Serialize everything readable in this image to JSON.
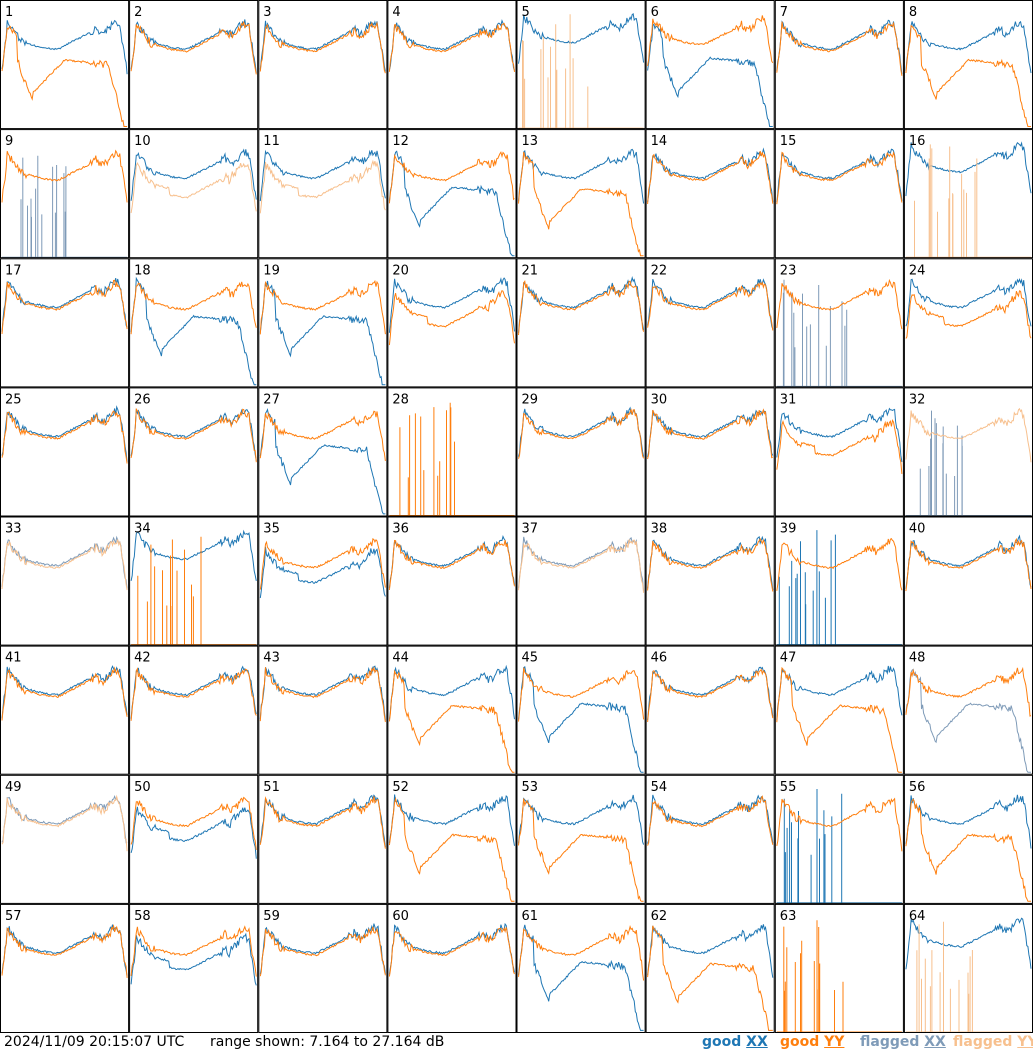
{
  "footer": {
    "timestamp": "2024/11/09 20:15:07 UTC",
    "range_text": "range shown: 7.164 to 27.164 dB"
  },
  "legend": [
    {
      "status": "good",
      "pol": "XX",
      "color": "#1f77b4"
    },
    {
      "status": "good",
      "pol": "YY",
      "color": "#ff7f0e"
    },
    {
      "status": "flagged",
      "pol": "XX",
      "color": "#7f9bb8"
    },
    {
      "status": "flagged",
      "pol": "YY",
      "color": "#f7c08e"
    }
  ],
  "chart_data": {
    "type": "line",
    "grid": "8x8 small-multiples of antenna spectra",
    "ylim": [
      7.164,
      27.164
    ],
    "units": "dB",
    "panels": [
      {
        "id": "1",
        "xx": "good",
        "yy": "good",
        "xx_shape": "normal",
        "yy_shape": "droop"
      },
      {
        "id": "2",
        "xx": "good",
        "yy": "good",
        "xx_shape": "normal",
        "yy_shape": "normal"
      },
      {
        "id": "3",
        "xx": "good",
        "yy": "good",
        "xx_shape": "normal",
        "yy_shape": "normal"
      },
      {
        "id": "4",
        "xx": "good",
        "yy": "good",
        "xx_shape": "normal",
        "yy_shape": "normal"
      },
      {
        "id": "5",
        "xx": "good",
        "yy": "flagged",
        "xx_shape": "high",
        "yy_shape": "spikes"
      },
      {
        "id": "6",
        "xx": "good",
        "yy": "good",
        "xx_shape": "droop",
        "yy_shape": "high"
      },
      {
        "id": "7",
        "xx": "good",
        "yy": "good",
        "xx_shape": "normal",
        "yy_shape": "normal"
      },
      {
        "id": "8",
        "xx": "good",
        "yy": "good",
        "xx_shape": "normal",
        "yy_shape": "droop"
      },
      {
        "id": "9",
        "xx": "flagged",
        "yy": "good",
        "xx_shape": "spikes",
        "yy_shape": "normal"
      },
      {
        "id": "10",
        "xx": "good",
        "yy": "flagged",
        "xx_shape": "normal",
        "yy_shape": "low"
      },
      {
        "id": "11",
        "xx": "good",
        "yy": "flagged",
        "xx_shape": "normal",
        "yy_shape": "low"
      },
      {
        "id": "12",
        "xx": "good",
        "yy": "good",
        "xx_shape": "droop",
        "yy_shape": "normal"
      },
      {
        "id": "13",
        "xx": "good",
        "yy": "good",
        "xx_shape": "normal",
        "yy_shape": "droop"
      },
      {
        "id": "14",
        "xx": "good",
        "yy": "good",
        "xx_shape": "normal",
        "yy_shape": "normal"
      },
      {
        "id": "15",
        "xx": "good",
        "yy": "good",
        "xx_shape": "normal",
        "yy_shape": "normal"
      },
      {
        "id": "16",
        "xx": "good",
        "yy": "flagged",
        "xx_shape": "high",
        "yy_shape": "spikes"
      },
      {
        "id": "17",
        "xx": "good",
        "yy": "good",
        "xx_shape": "normal",
        "yy_shape": "normal"
      },
      {
        "id": "18",
        "xx": "good",
        "yy": "good",
        "xx_shape": "droop",
        "yy_shape": "normal"
      },
      {
        "id": "19",
        "xx": "good",
        "yy": "good",
        "xx_shape": "droop",
        "yy_shape": "normal"
      },
      {
        "id": "20",
        "xx": "good",
        "yy": "good",
        "xx_shape": "normal",
        "yy_shape": "low"
      },
      {
        "id": "21",
        "xx": "good",
        "yy": "good",
        "xx_shape": "normal",
        "yy_shape": "normal"
      },
      {
        "id": "22",
        "xx": "good",
        "yy": "good",
        "xx_shape": "normal",
        "yy_shape": "normal"
      },
      {
        "id": "23",
        "xx": "flagged",
        "yy": "good",
        "xx_shape": "spikes",
        "yy_shape": "normal"
      },
      {
        "id": "24",
        "xx": "good",
        "yy": "good",
        "xx_shape": "normal",
        "yy_shape": "low"
      },
      {
        "id": "25",
        "xx": "good",
        "yy": "good",
        "xx_shape": "normal",
        "yy_shape": "normal"
      },
      {
        "id": "26",
        "xx": "good",
        "yy": "good",
        "xx_shape": "normal",
        "yy_shape": "normal"
      },
      {
        "id": "27",
        "xx": "good",
        "yy": "good",
        "xx_shape": "droop",
        "yy_shape": "normal"
      },
      {
        "id": "28",
        "xx": "good",
        "yy": "good",
        "xx_shape": "none",
        "yy_shape": "spikes"
      },
      {
        "id": "29",
        "xx": "good",
        "yy": "good",
        "xx_shape": "normal",
        "yy_shape": "normal"
      },
      {
        "id": "30",
        "xx": "good",
        "yy": "good",
        "xx_shape": "normal",
        "yy_shape": "normal"
      },
      {
        "id": "31",
        "xx": "good",
        "yy": "good",
        "xx_shape": "normal",
        "yy_shape": "low"
      },
      {
        "id": "32",
        "xx": "flagged",
        "yy": "flagged",
        "xx_shape": "spikes",
        "yy_shape": "normal"
      },
      {
        "id": "33",
        "xx": "flagged",
        "yy": "flagged",
        "xx_shape": "normal",
        "yy_shape": "normal"
      },
      {
        "id": "34",
        "xx": "good",
        "yy": "good",
        "xx_shape": "high",
        "yy_shape": "spikes"
      },
      {
        "id": "35",
        "xx": "good",
        "yy": "good",
        "xx_shape": "low",
        "yy_shape": "normal"
      },
      {
        "id": "36",
        "xx": "good",
        "yy": "good",
        "xx_shape": "normal",
        "yy_shape": "normal"
      },
      {
        "id": "37",
        "xx": "flagged",
        "yy": "flagged",
        "xx_shape": "normal",
        "yy_shape": "normal"
      },
      {
        "id": "38",
        "xx": "good",
        "yy": "good",
        "xx_shape": "normal",
        "yy_shape": "normal"
      },
      {
        "id": "39",
        "xx": "good",
        "yy": "good",
        "xx_shape": "spikes",
        "yy_shape": "normal"
      },
      {
        "id": "40",
        "xx": "good",
        "yy": "good",
        "xx_shape": "normal",
        "yy_shape": "normal"
      },
      {
        "id": "41",
        "xx": "good",
        "yy": "good",
        "xx_shape": "normal",
        "yy_shape": "normal"
      },
      {
        "id": "42",
        "xx": "good",
        "yy": "good",
        "xx_shape": "normal",
        "yy_shape": "normal"
      },
      {
        "id": "43",
        "xx": "good",
        "yy": "good",
        "xx_shape": "normal",
        "yy_shape": "normal"
      },
      {
        "id": "44",
        "xx": "good",
        "yy": "good",
        "xx_shape": "normal",
        "yy_shape": "droop"
      },
      {
        "id": "45",
        "xx": "good",
        "yy": "good",
        "xx_shape": "droop",
        "yy_shape": "normal"
      },
      {
        "id": "46",
        "xx": "good",
        "yy": "good",
        "xx_shape": "normal",
        "yy_shape": "normal"
      },
      {
        "id": "47",
        "xx": "good",
        "yy": "good",
        "xx_shape": "normal",
        "yy_shape": "droop"
      },
      {
        "id": "48",
        "xx": "flagged",
        "yy": "good",
        "xx_shape": "droop",
        "yy_shape": "normal"
      },
      {
        "id": "49",
        "xx": "flagged",
        "yy": "flagged",
        "xx_shape": "normal",
        "yy_shape": "normal"
      },
      {
        "id": "50",
        "xx": "good",
        "yy": "good",
        "xx_shape": "low",
        "yy_shape": "normal"
      },
      {
        "id": "51",
        "xx": "good",
        "yy": "good",
        "xx_shape": "normal",
        "yy_shape": "normal"
      },
      {
        "id": "52",
        "xx": "good",
        "yy": "good",
        "xx_shape": "normal",
        "yy_shape": "droop"
      },
      {
        "id": "53",
        "xx": "good",
        "yy": "good",
        "xx_shape": "normal",
        "yy_shape": "droop"
      },
      {
        "id": "54",
        "xx": "good",
        "yy": "good",
        "xx_shape": "normal",
        "yy_shape": "normal"
      },
      {
        "id": "55",
        "xx": "good",
        "yy": "good",
        "xx_shape": "spikes",
        "yy_shape": "normal"
      },
      {
        "id": "56",
        "xx": "good",
        "yy": "good",
        "xx_shape": "normal",
        "yy_shape": "droop"
      },
      {
        "id": "57",
        "xx": "good",
        "yy": "good",
        "xx_shape": "normal",
        "yy_shape": "normal"
      },
      {
        "id": "58",
        "xx": "good",
        "yy": "good",
        "xx_shape": "low",
        "yy_shape": "normal"
      },
      {
        "id": "59",
        "xx": "good",
        "yy": "good",
        "xx_shape": "normal",
        "yy_shape": "normal"
      },
      {
        "id": "60",
        "xx": "good",
        "yy": "good",
        "xx_shape": "normal",
        "yy_shape": "normal"
      },
      {
        "id": "61",
        "xx": "good",
        "yy": "good",
        "xx_shape": "droop",
        "yy_shape": "normal"
      },
      {
        "id": "62",
        "xx": "good",
        "yy": "good",
        "xx_shape": "normal",
        "yy_shape": "droop"
      },
      {
        "id": "63",
        "xx": "good",
        "yy": "good",
        "xx_shape": "none",
        "yy_shape": "spikes"
      },
      {
        "id": "64",
        "xx": "good",
        "yy": "flagged",
        "xx_shape": "high",
        "yy_shape": "spikes"
      }
    ]
  }
}
